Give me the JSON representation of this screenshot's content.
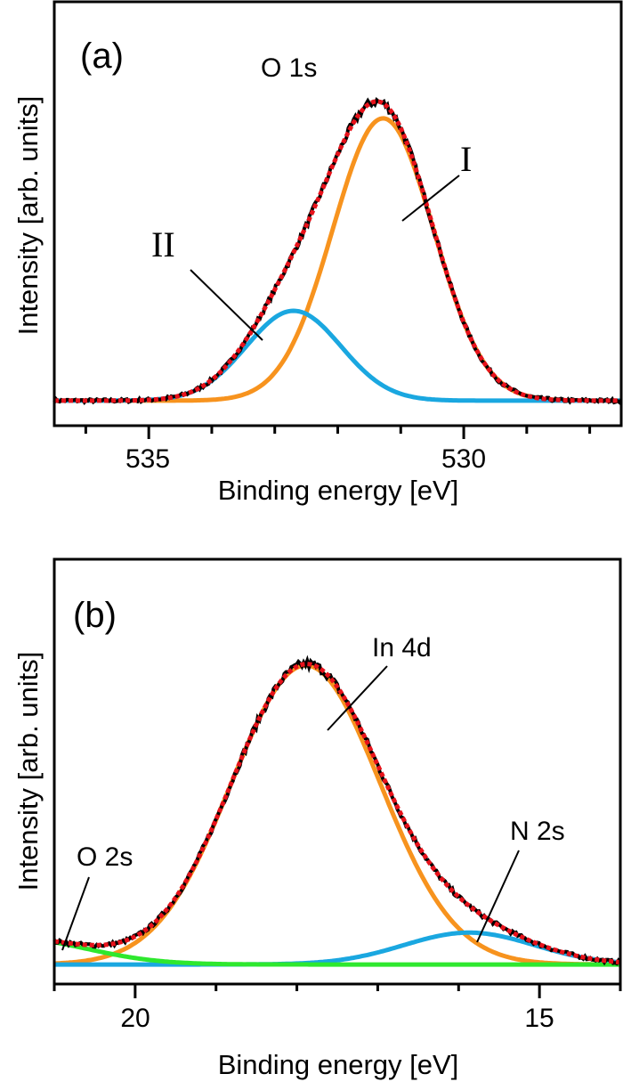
{
  "chart_data": [
    {
      "type": "line",
      "panel_label": "(a)",
      "title": "O 1s",
      "xlabel": "Binding energy [eV]",
      "ylabel": "Intensity [arb. units]",
      "xlim": [
        536.5,
        527.5
      ],
      "x_reversed": true,
      "ylim": [
        0,
        1
      ],
      "y_ticks_shown": false,
      "grid": false,
      "x_major_ticks": [
        535,
        530
      ],
      "x_tick_labels": [
        "535",
        "530"
      ],
      "x_minor_ticks": [
        536,
        534,
        533,
        532,
        531,
        529,
        528
      ],
      "baseline": 0.059,
      "components": [
        {
          "label": "I",
          "center": 531.28,
          "amplitude": 0.666,
          "sigma": 0.8,
          "color": "#f7931e"
        },
        {
          "label": "II",
          "center": 532.7,
          "amplitude": 0.212,
          "sigma": 0.75,
          "color": "#1aa7e0"
        }
      ],
      "fit_color": "#e8121b",
      "data_color": "#000000",
      "annotations": [
        "I",
        "II"
      ]
    },
    {
      "type": "line",
      "panel_label": "(b)",
      "xlabel": "Binding energy [eV]",
      "ylabel": "Intensity [arb. units]",
      "xlim": [
        21,
        14
      ],
      "x_reversed": true,
      "ylim": [
        0,
        1
      ],
      "y_ticks_shown": false,
      "grid": false,
      "x_major_ticks": [
        20,
        15
      ],
      "x_tick_labels": [
        "20",
        "15"
      ],
      "x_minor_ticks": [
        21,
        19,
        18,
        17,
        16,
        14
      ],
      "baseline": 0.046,
      "components": [
        {
          "label": "In 4d",
          "center": 17.89,
          "amplitude": 0.704,
          "sigma": 0.92,
          "color": "#f7931e"
        },
        {
          "label": "N 2s",
          "center": 15.87,
          "amplitude": 0.075,
          "sigma": 0.81,
          "color": "#1aa7e0"
        },
        {
          "label": "O 2s",
          "center": 21.5,
          "amplitude": 0.061,
          "sigma": 0.9,
          "color": "#2ee82e"
        }
      ],
      "fit_color": "#e8121b",
      "data_color": "#000000",
      "annotations": [
        "In 4d",
        "N 2s",
        "O 2s"
      ]
    }
  ]
}
